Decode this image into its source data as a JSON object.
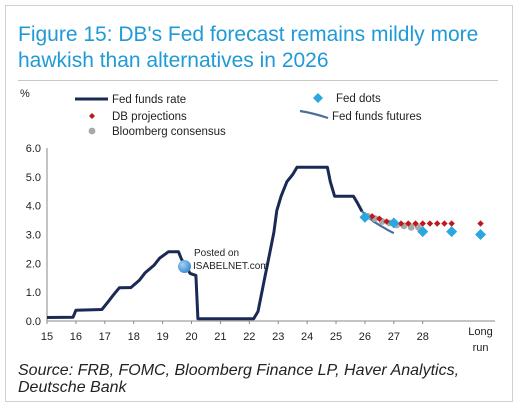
{
  "title": "Figure 15: DB's Fed forecast remains mildly more hawkish than alternatives in 2026",
  "source": "Source: FRB, FOMC, Bloomberg Finance LP, Haver Analytics, Deutsche Bank",
  "watermark": {
    "line1": "Posted on",
    "line2": "ISABELNET.com"
  },
  "colors": {
    "title": "#1f9ad6",
    "fed_funds_rate": "#1b2a55",
    "fed_funds_futures": "#4a6f9c",
    "fed_dots": "#2aa7df",
    "db_projections": "#c0161d",
    "bloomberg_consensus": "#a8a8a8"
  },
  "chart_data": {
    "type": "line",
    "ylabel": "%",
    "ylim": [
      0,
      6
    ],
    "yticks": [
      "0.0",
      "1.0",
      "2.0",
      "3.0",
      "4.0",
      "5.0",
      "6.0"
    ],
    "xlim": [
      2015,
      2030.5
    ],
    "xticks": [
      {
        "x": 2015,
        "label": "15"
      },
      {
        "x": 2016,
        "label": "16"
      },
      {
        "x": 2017,
        "label": "17"
      },
      {
        "x": 2018,
        "label": "18"
      },
      {
        "x": 2019,
        "label": "19"
      },
      {
        "x": 2020,
        "label": "20"
      },
      {
        "x": 2021,
        "label": "21"
      },
      {
        "x": 2022,
        "label": "22"
      },
      {
        "x": 2023,
        "label": "23"
      },
      {
        "x": 2024,
        "label": "24"
      },
      {
        "x": 2025,
        "label": "25"
      },
      {
        "x": 2026,
        "label": "26"
      },
      {
        "x": 2027,
        "label": "27"
      },
      {
        "x": 2028,
        "label": "28"
      }
    ],
    "long_run_label": [
      "Long",
      "run"
    ],
    "long_run_x": 2030,
    "legend": {
      "fed_funds_rate": "Fed funds rate",
      "fed_dots": "Fed dots",
      "db_projections": "DB projections",
      "fed_funds_futures": "Fed funds futures",
      "bloomberg_consensus": "Bloomberg consensus"
    },
    "series": {
      "fed_funds_rate": [
        [
          2015.0,
          0.12
        ],
        [
          2015.9,
          0.13
        ],
        [
          2016.0,
          0.37
        ],
        [
          2016.9,
          0.4
        ],
        [
          2017.1,
          0.65
        ],
        [
          2017.3,
          0.91
        ],
        [
          2017.5,
          1.15
        ],
        [
          2017.9,
          1.16
        ],
        [
          2018.2,
          1.42
        ],
        [
          2018.4,
          1.68
        ],
        [
          2018.7,
          1.93
        ],
        [
          2018.9,
          2.18
        ],
        [
          2019.2,
          2.4
        ],
        [
          2019.55,
          2.4
        ],
        [
          2019.65,
          2.15
        ],
        [
          2019.8,
          1.9
        ],
        [
          2019.95,
          1.65
        ],
        [
          2020.15,
          1.58
        ],
        [
          2020.22,
          0.08
        ],
        [
          2022.15,
          0.08
        ],
        [
          2022.3,
          0.33
        ],
        [
          2022.4,
          0.83
        ],
        [
          2022.55,
          1.58
        ],
        [
          2022.7,
          2.33
        ],
        [
          2022.85,
          3.08
        ],
        [
          2022.95,
          3.83
        ],
        [
          2023.1,
          4.33
        ],
        [
          2023.3,
          4.83
        ],
        [
          2023.5,
          5.08
        ],
        [
          2023.65,
          5.33
        ],
        [
          2024.7,
          5.33
        ],
        [
          2024.8,
          4.83
        ],
        [
          2024.95,
          4.33
        ],
        [
          2025.6,
          4.33
        ],
        [
          2025.75,
          4.08
        ],
        [
          2025.9,
          3.8
        ]
      ],
      "fed_funds_futures": [
        [
          2025.9,
          3.8
        ],
        [
          2026.1,
          3.62
        ],
        [
          2026.3,
          3.45
        ],
        [
          2026.55,
          3.3
        ],
        [
          2026.8,
          3.15
        ],
        [
          2027.0,
          3.05
        ]
      ],
      "fed_dots": [
        [
          2026.0,
          3.6
        ],
        [
          2027.0,
          3.4
        ],
        [
          2028.0,
          3.1
        ],
        [
          2029.0,
          3.1
        ],
        [
          2030.0,
          3.0
        ]
      ],
      "db_projections": [
        [
          2026.0,
          3.65
        ],
        [
          2026.25,
          3.63
        ],
        [
          2026.5,
          3.55
        ],
        [
          2026.75,
          3.45
        ],
        [
          2027.0,
          3.38
        ],
        [
          2027.25,
          3.38
        ],
        [
          2027.5,
          3.38
        ],
        [
          2027.75,
          3.38
        ],
        [
          2028.0,
          3.38
        ],
        [
          2028.25,
          3.38
        ],
        [
          2028.5,
          3.38
        ],
        [
          2028.75,
          3.38
        ],
        [
          2029.0,
          3.38
        ],
        [
          2030.0,
          3.38
        ]
      ],
      "bloomberg_consensus": [
        [
          2026.1,
          3.63
        ],
        [
          2026.35,
          3.55
        ],
        [
          2026.6,
          3.45
        ],
        [
          2026.85,
          3.4
        ],
        [
          2027.1,
          3.33
        ],
        [
          2027.35,
          3.3
        ],
        [
          2027.6,
          3.25
        ],
        [
          2027.85,
          3.25
        ]
      ]
    }
  }
}
